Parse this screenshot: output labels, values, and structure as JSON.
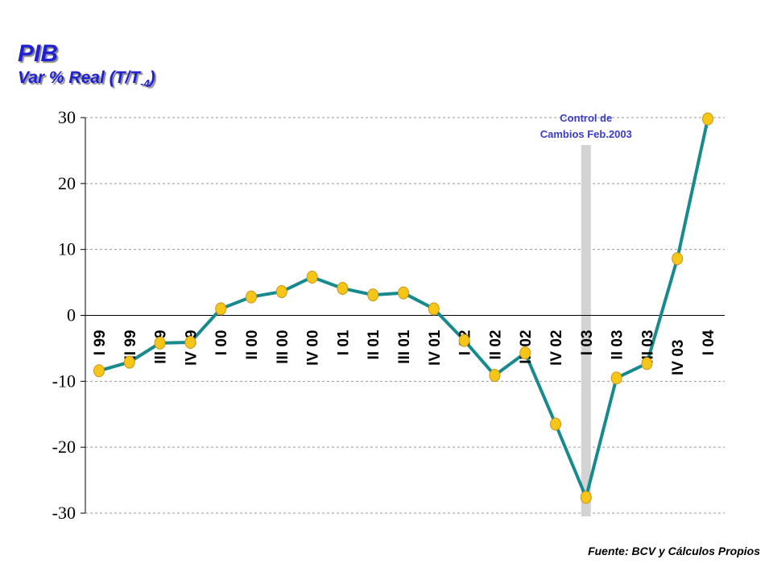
{
  "title": "PIB",
  "subtitle_main": "Var % Real (T/T",
  "subtitle_sub": "-4",
  "subtitle_end": ")",
  "source": "Fuente: BCV y Cálculos Propios",
  "colors": {
    "title": "#1f1fd6",
    "line": "#168a8c",
    "marker": "#f5c518",
    "marker_edge": "#c8961a",
    "annotation": "#3b3bc4",
    "band": "#d3d3d3"
  },
  "chart_data": {
    "type": "line",
    "categories": [
      "I 99",
      "II 99",
      "III 99",
      "IV 99",
      "I 00",
      "II 00",
      "III 00",
      "IV 00",
      "I 01",
      "II 01",
      "III 01",
      "IV 01",
      "I 02",
      "II 02",
      "III 02",
      "IV 02",
      "I 03",
      "II 03",
      "III 03",
      "IV 03",
      "I 04"
    ],
    "values": [
      -8.4,
      -7.1,
      -4.2,
      -4.1,
      1.0,
      2.8,
      3.6,
      5.8,
      4.1,
      3.1,
      3.4,
      1.0,
      -3.8,
      -9.1,
      -5.7,
      -16.5,
      -27.6,
      -9.5,
      -7.3,
      8.6,
      29.8
    ],
    "ylim": [
      -30,
      30
    ],
    "yticks": [
      -30,
      -20,
      -10,
      0,
      10,
      20,
      30
    ],
    "ytick_labels": [
      "-30",
      "-20",
      "-10",
      "0",
      "10",
      "20",
      "30"
    ],
    "grid": true,
    "annotation": {
      "lines": [
        "Control de",
        "Cambios Feb.2003"
      ],
      "category": "I 03"
    }
  }
}
